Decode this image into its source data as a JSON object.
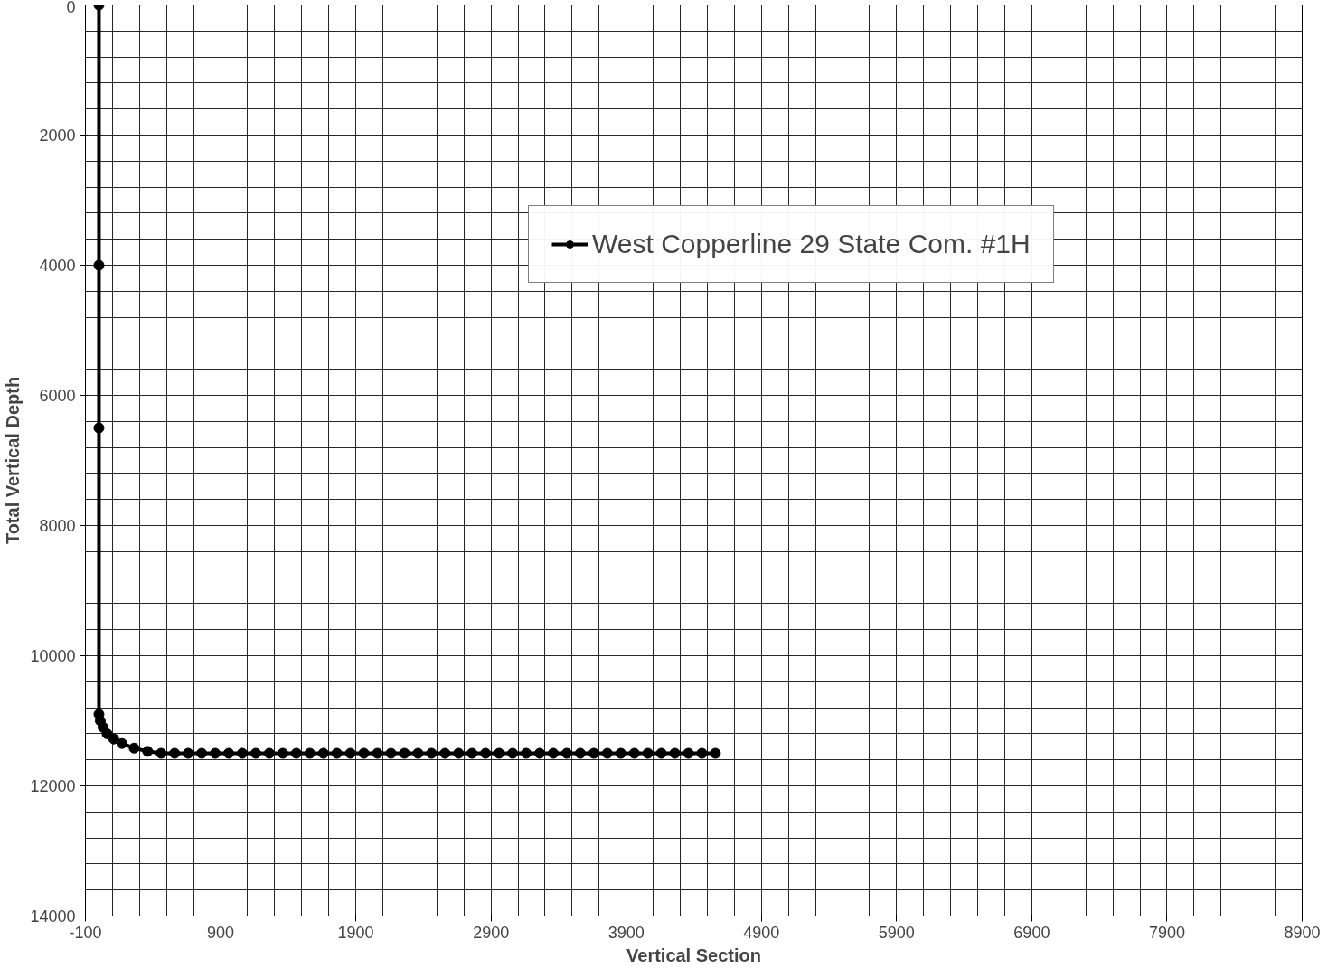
{
  "chart_data": {
    "type": "line",
    "xlabel": "Vertical Section",
    "ylabel": "Total Vertical Depth",
    "xlim": [
      -100,
      8900
    ],
    "xticks": [
      -100,
      900,
      1900,
      2900,
      3900,
      4900,
      5900,
      6900,
      7900,
      8900
    ],
    "ylim": [
      14000,
      0
    ],
    "yticks": [
      0,
      2000,
      4000,
      6000,
      8000,
      10000,
      12000,
      14000
    ],
    "grid": true,
    "legend": "top right",
    "marker": "circle",
    "line_style": "solid",
    "series": [
      {
        "name": "West Copperline 29 State Com. #1H",
        "color": "#000000",
        "x": [
          0,
          0,
          0,
          0,
          10,
          30,
          60,
          110,
          170,
          260,
          360,
          460,
          560,
          660,
          760,
          860,
          960,
          1060,
          1160,
          1260,
          1360,
          1460,
          1560,
          1660,
          1760,
          1860,
          1960,
          2060,
          2160,
          2260,
          2360,
          2460,
          2560,
          2660,
          2760,
          2860,
          2960,
          3060,
          3160,
          3260,
          3360,
          3460,
          3560,
          3660,
          3760,
          3860,
          3960,
          4060,
          4160,
          4260,
          4360,
          4460,
          4560
        ],
        "values": [
          0,
          4000,
          6500,
          10900,
          11000,
          11100,
          11200,
          11280,
          11350,
          11420,
          11470,
          11500,
          11500,
          11500,
          11500,
          11500,
          11500,
          11500,
          11500,
          11500,
          11500,
          11500,
          11500,
          11500,
          11500,
          11500,
          11500,
          11500,
          11500,
          11500,
          11500,
          11500,
          11500,
          11500,
          11500,
          11500,
          11500,
          11500,
          11500,
          11500,
          11500,
          11500,
          11500,
          11500,
          11500,
          11500,
          11500,
          11500,
          11500,
          11500,
          11500,
          11500,
          11500
        ]
      }
    ]
  }
}
